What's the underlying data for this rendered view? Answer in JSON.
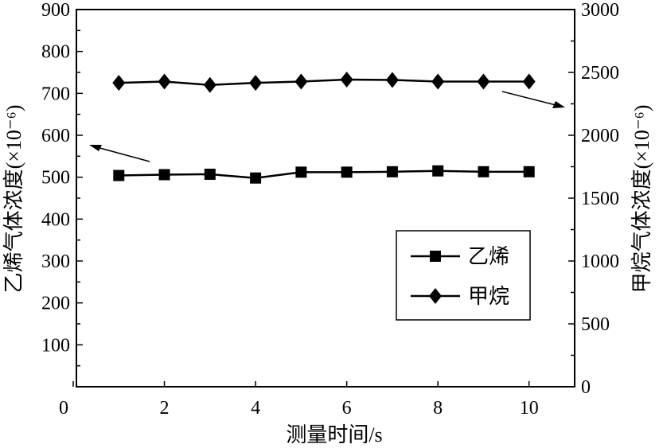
{
  "chart_data": {
    "type": "line",
    "xlabel": "测量时间/s",
    "ylabel_left": "乙烯气体浓度(×10⁻⁶)",
    "ylabel_right": "甲烷气体浓度(×10⁻⁶)",
    "xlim": [
      0,
      11
    ],
    "ylim_left": [
      0,
      900
    ],
    "ylim_right": [
      0,
      3000
    ],
    "x_ticks": [
      0,
      2,
      4,
      6,
      8,
      10
    ],
    "y_ticks_left": [
      100,
      200,
      300,
      400,
      500,
      600,
      700,
      800,
      900
    ],
    "y_ticks_right": [
      0,
      500,
      1000,
      1500,
      2000,
      2500,
      3000
    ],
    "grid": false,
    "legend_position": "center-right",
    "x": [
      1,
      2,
      3,
      4,
      5,
      6,
      7,
      8,
      9,
      10
    ],
    "series": [
      {
        "name": "乙烯",
        "axis": "left",
        "marker": "square",
        "values": [
          504,
          506,
          507,
          498,
          512,
          512,
          513,
          515,
          513,
          513
        ]
      },
      {
        "name": "甲烷",
        "axis": "right",
        "marker": "diamond",
        "values": [
          2417,
          2427,
          2400,
          2417,
          2427,
          2443,
          2440,
          2427,
          2427,
          2427
        ]
      }
    ],
    "annotations": [
      "arrow pointing to left axis from ethylene line",
      "arrow pointing to right axis from methane line"
    ]
  }
}
